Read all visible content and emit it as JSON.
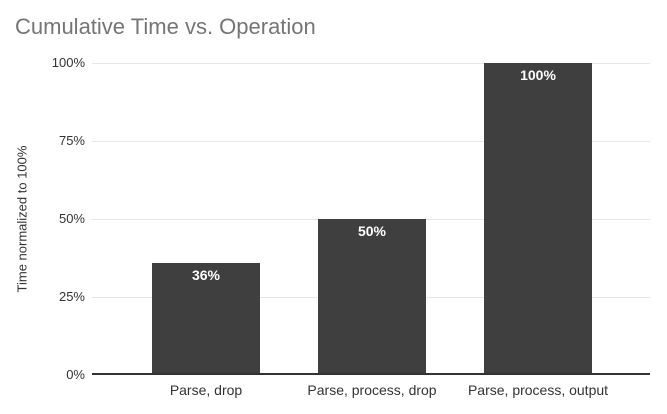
{
  "title": "Cumulative Time vs. Operation",
  "colors": {
    "background": "#ffffff",
    "bar_fill": "#3f3f3f",
    "title_text": "#757575",
    "axis_text": "#333333",
    "gridline": "#e6e6e6",
    "baseline": "#333333",
    "data_label_text": "#ffffff"
  },
  "chart_data": {
    "type": "bar",
    "title": "Cumulative Time vs. Operation",
    "categories": [
      "Parse, drop",
      "Parse, process, drop",
      "Parse, process, output"
    ],
    "values": [
      36,
      50,
      100
    ],
    "data_labels": [
      "36%",
      "50%",
      "100%"
    ],
    "xlabel": "",
    "ylabel": "Time normalized to 100%",
    "ylim": [
      0,
      100
    ],
    "yticks": [
      0,
      25,
      50,
      75,
      100
    ],
    "ytick_labels": [
      "0%",
      "25%",
      "50%",
      "75%",
      "100%"
    ],
    "grid": "horizontal",
    "legend": "none",
    "bar_orientation": "vertical"
  }
}
